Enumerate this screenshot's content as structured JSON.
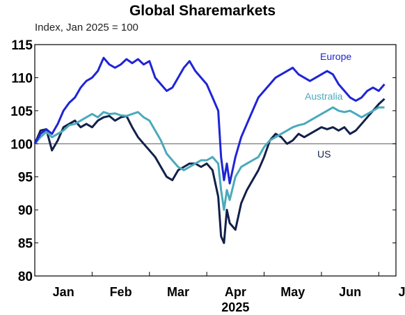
{
  "chart_data": {
    "type": "line",
    "title": "Global Sharemarkets",
    "subtitle": "Index, Jan 2025 = 100",
    "xlabel": "2025",
    "ylabel": "",
    "ylim": [
      80,
      115
    ],
    "yticks": [
      80,
      85,
      90,
      95,
      100,
      105,
      110,
      115
    ],
    "xlim": [
      0,
      6.3
    ],
    "x_ticks": [
      {
        "label": "Jan",
        "pos": 0.5
      },
      {
        "label": "Feb",
        "pos": 1.5
      },
      {
        "label": "Mar",
        "pos": 2.5
      },
      {
        "label": "Apr",
        "pos": 3.5
      },
      {
        "label": "May",
        "pos": 4.5
      },
      {
        "label": "Jun",
        "pos": 5.5
      },
      {
        "label": "Jul",
        "pos": 6.5
      }
    ],
    "year_label": "2025",
    "reference_line": 100,
    "legend": "inline labels",
    "colors": {
      "Europe": "#1f24d6",
      "Australia": "#4aaabb",
      "US": "#12204a"
    },
    "series": [
      {
        "name": "Europe",
        "x": [
          0.0,
          0.1,
          0.2,
          0.3,
          0.4,
          0.5,
          0.6,
          0.7,
          0.8,
          0.9,
          1.0,
          1.1,
          1.2,
          1.3,
          1.4,
          1.5,
          1.6,
          1.7,
          1.8,
          1.9,
          2.0,
          2.1,
          2.2,
          2.3,
          2.4,
          2.5,
          2.6,
          2.7,
          2.8,
          2.9,
          3.0,
          3.1,
          3.2,
          3.25,
          3.3,
          3.35,
          3.4,
          3.5,
          3.6,
          3.7,
          3.8,
          3.9,
          4.0,
          4.1,
          4.2,
          4.3,
          4.4,
          4.5,
          4.6,
          4.7,
          4.8,
          4.9,
          5.0,
          5.1,
          5.2,
          5.3,
          5.4,
          5.5,
          5.6,
          5.7,
          5.8,
          5.9,
          6.0,
          6.1
        ],
        "values": [
          100,
          101.5,
          102.2,
          101.5,
          103,
          105,
          106.2,
          107,
          108.5,
          109.5,
          110,
          111,
          113,
          112,
          111.5,
          112,
          112.8,
          112.2,
          112.8,
          112,
          112.5,
          110,
          109,
          108,
          108.5,
          110,
          111.5,
          112.5,
          111,
          110,
          109,
          107,
          105,
          98,
          94.5,
          97,
          94,
          98,
          101,
          103,
          105,
          107,
          108,
          109,
          110,
          110.5,
          111,
          111.5,
          110.5,
          110,
          109.5,
          110,
          110.5,
          111,
          110.5,
          109,
          108,
          107,
          106.5,
          107,
          108,
          108.5,
          108,
          109
        ]
      },
      {
        "name": "Australia",
        "x": [
          0.0,
          0.1,
          0.2,
          0.3,
          0.4,
          0.5,
          0.6,
          0.7,
          0.8,
          0.9,
          1.0,
          1.1,
          1.2,
          1.3,
          1.4,
          1.5,
          1.6,
          1.7,
          1.8,
          1.9,
          2.0,
          2.1,
          2.2,
          2.3,
          2.4,
          2.5,
          2.6,
          2.7,
          2.8,
          2.9,
          3.0,
          3.1,
          3.2,
          3.25,
          3.3,
          3.35,
          3.4,
          3.5,
          3.6,
          3.7,
          3.8,
          3.9,
          4.0,
          4.1,
          4.2,
          4.3,
          4.4,
          4.5,
          4.6,
          4.7,
          4.8,
          4.9,
          5.0,
          5.1,
          5.2,
          5.3,
          5.4,
          5.5,
          5.6,
          5.7,
          5.8,
          5.9,
          6.0,
          6.1
        ],
        "values": [
          100,
          101,
          101.8,
          101,
          101.5,
          102,
          102.8,
          103,
          103.5,
          104,
          104.5,
          104,
          104.8,
          104.5,
          104.6,
          104.3,
          104.2,
          104.5,
          104.8,
          104,
          103.5,
          102,
          100.5,
          98.5,
          97.5,
          96.5,
          96,
          96.5,
          97,
          97.5,
          97.5,
          98,
          97,
          93,
          90,
          93,
          91.5,
          95,
          96.5,
          97,
          97.5,
          98,
          99.5,
          100.5,
          101,
          101.5,
          102,
          102.5,
          102.8,
          103,
          103.5,
          104,
          104.5,
          105,
          105.5,
          105,
          104.8,
          105,
          104.5,
          104,
          104.5,
          105,
          105.5,
          105.5
        ]
      },
      {
        "name": "US",
        "x": [
          0.0,
          0.1,
          0.2,
          0.3,
          0.4,
          0.5,
          0.6,
          0.7,
          0.8,
          0.9,
          1.0,
          1.1,
          1.2,
          1.3,
          1.4,
          1.5,
          1.6,
          1.7,
          1.8,
          1.9,
          2.0,
          2.1,
          2.2,
          2.3,
          2.4,
          2.5,
          2.6,
          2.7,
          2.8,
          2.9,
          3.0,
          3.1,
          3.2,
          3.25,
          3.3,
          3.35,
          3.4,
          3.5,
          3.6,
          3.7,
          3.8,
          3.9,
          4.0,
          4.1,
          4.2,
          4.3,
          4.4,
          4.5,
          4.6,
          4.7,
          4.8,
          4.9,
          5.0,
          5.1,
          5.2,
          5.3,
          5.4,
          5.5,
          5.6,
          5.7,
          5.8,
          5.9,
          6.0,
          6.1
        ],
        "values": [
          100,
          102,
          102.2,
          99,
          100.5,
          102.5,
          103,
          103.5,
          102.5,
          103,
          102.5,
          103.5,
          104,
          104.2,
          103.5,
          104,
          104.2,
          102.5,
          101,
          100,
          99,
          98,
          96.5,
          95,
          94.5,
          96,
          96.5,
          97,
          97,
          96.5,
          97,
          96,
          92,
          86,
          85,
          90,
          88,
          87,
          91,
          93,
          94.5,
          96,
          98,
          100.5,
          101.5,
          101,
          100,
          100.5,
          101.5,
          101,
          101.5,
          102,
          102.5,
          102.2,
          102.5,
          102,
          102.5,
          101.5,
          102,
          103,
          104,
          105,
          106,
          106.8
        ]
      }
    ]
  }
}
